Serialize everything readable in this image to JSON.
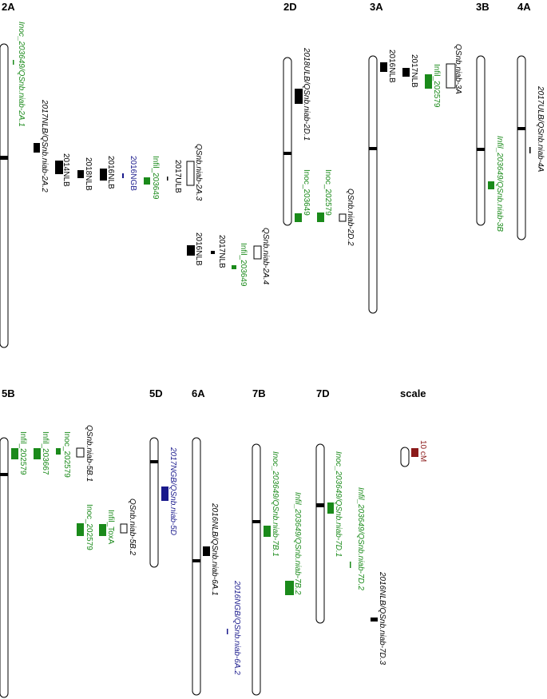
{
  "colors": {
    "black": "#000000",
    "green": "#1a8a1a",
    "navy": "#1a1a8c",
    "darkred": "#8b1a1a"
  },
  "panels": {
    "p2A": "2A",
    "p2D": "2D",
    "p3A": "3A",
    "p3B": "3B",
    "p4A": "4A",
    "p5B": "5B",
    "p5D": "5D",
    "p6A": "6A",
    "p7B": "7B",
    "p7D": "7D",
    "scale": "scale"
  },
  "scale_text": "10 cM",
  "qtl": {
    "l2A_1": "Inoc_203649/QSnb.niab-2A.1",
    "l2A_2": "2017NLB/QSnb.niab-2A.2",
    "l2A_3a": "2014NLB",
    "l2A_3b": "2018NLB",
    "l2A_3c": "2016NLB",
    "l2A_3d": "2016NGB",
    "l2A_3e": "Infil_203649",
    "l2A_3f": "2017ULB",
    "l2A_3g": "QSnb.niab-2A.3",
    "l2A_4a": "2016NLB",
    "l2A_4b": "2017NLB",
    "l2A_4c": "Infil_203649",
    "l2A_4d": "QSnb.niab-2A.4",
    "l2D_1": "2018ULB/QSnb.niab-2D.1",
    "l2D_2a": "Inoc_203649",
    "l2D_2b": "Inoc_202579",
    "l2D_2c": "QSnb.niab-2D.2",
    "l3A_a": "2016NLB",
    "l3A_b": "2017NLB",
    "l3A_c": "Infil_202579",
    "l3A_d": "QSnb.niab-3A",
    "l3B": "Infil_203649/QSnb.niab-3B",
    "l4A": "2017ULB/QSnb.niab-4A",
    "l5B_1a": "Infil_202579",
    "l5B_1b": "Infil_203667",
    "l5B_1c": "Inoc_202579",
    "l5B_1d": "QSnb.niab-5B.1",
    "l5B_2a": "Inoc_202579",
    "l5B_2b": "Infil_ToxA",
    "l5B_2c": "QSnb.niab-5B.2",
    "l5D": "2017NGB/QSnb.niab-5D",
    "l6A_1": "2016NLB/QSnb.niab-6A.1",
    "l6A_2": "2016NGB/QSnb.niab-6A.2",
    "l7B_1": "Inoc_203649/QSnb.niab-7B.1",
    "l7B_2": "Infil_203649/QSnb.niab-7B.2",
    "l7D_1": "Inoc_203649/QSnb.niab-7D.1",
    "l7D_2": "Infil_203649/QSnb.niab-7D.2",
    "l7D_3": "2016NLB/QSnb.niab-7D.3"
  }
}
